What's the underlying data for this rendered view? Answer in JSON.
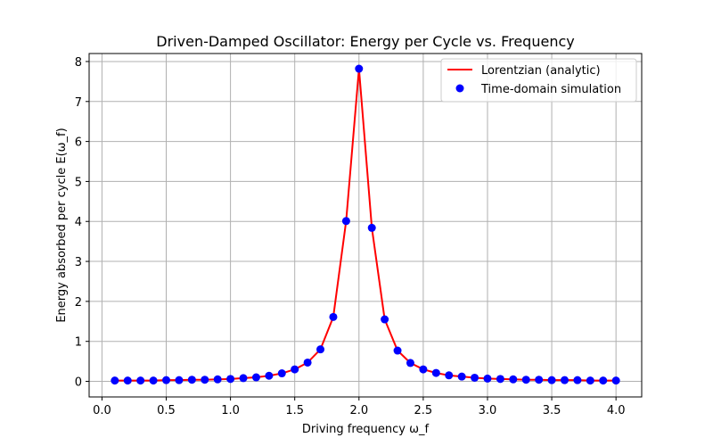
{
  "chart_data": {
    "type": "line",
    "title": "Driven-Damped Oscillator: Energy per Cycle vs. Frequency",
    "xlabel": "Driving frequency  ω_f",
    "ylabel": "Energy absorbed per cycle  E(ω_f)",
    "xlim": [
      -0.1,
      4.2
    ],
    "ylim": [
      -0.39,
      8.2
    ],
    "xticks": [
      0.0,
      0.5,
      1.0,
      1.5,
      2.0,
      2.5,
      3.0,
      3.5,
      4.0
    ],
    "xtick_labels": [
      "0.0",
      "0.5",
      "1.0",
      "1.5",
      "2.0",
      "2.5",
      "3.0",
      "3.5",
      "4.0"
    ],
    "yticks": [
      0,
      1,
      2,
      3,
      4,
      5,
      6,
      7,
      8
    ],
    "ytick_labels": [
      "0",
      "1",
      "2",
      "3",
      "4",
      "5",
      "6",
      "7",
      "8"
    ],
    "grid": true,
    "legend_position": "top-right",
    "x": [
      0.1,
      0.2,
      0.3,
      0.4,
      0.5,
      0.6,
      0.7,
      0.8,
      0.9,
      1.0,
      1.1,
      1.2,
      1.3,
      1.4,
      1.5,
      1.6,
      1.7,
      1.8,
      1.9,
      2.0,
      2.1,
      2.2,
      2.3,
      2.4,
      2.5,
      2.6,
      2.7,
      2.8,
      2.9,
      3.0,
      3.1,
      3.2,
      3.3,
      3.4,
      3.5,
      3.6,
      3.7,
      3.8,
      3.9,
      4.0
    ],
    "series": [
      {
        "name": "Lorentzian (analytic)",
        "kind": "line",
        "color": "#ff0000",
        "values": [
          0.02,
          0.02,
          0.02,
          0.02,
          0.03,
          0.03,
          0.04,
          0.04,
          0.05,
          0.06,
          0.08,
          0.1,
          0.14,
          0.2,
          0.3,
          0.47,
          0.8,
          1.61,
          4.01,
          7.82,
          3.84,
          1.55,
          0.77,
          0.46,
          0.3,
          0.21,
          0.15,
          0.12,
          0.09,
          0.07,
          0.06,
          0.05,
          0.04,
          0.04,
          0.03,
          0.03,
          0.03,
          0.02,
          0.02,
          0.02
        ]
      },
      {
        "name": "Time-domain simulation",
        "kind": "scatter",
        "color": "#0000ff",
        "values": [
          0.02,
          0.02,
          0.02,
          0.02,
          0.03,
          0.03,
          0.04,
          0.04,
          0.05,
          0.06,
          0.08,
          0.1,
          0.14,
          0.2,
          0.3,
          0.47,
          0.8,
          1.61,
          4.01,
          7.82,
          3.84,
          1.55,
          0.77,
          0.46,
          0.3,
          0.21,
          0.15,
          0.12,
          0.09,
          0.07,
          0.06,
          0.05,
          0.04,
          0.04,
          0.03,
          0.03,
          0.03,
          0.02,
          0.02,
          0.02
        ]
      }
    ]
  }
}
